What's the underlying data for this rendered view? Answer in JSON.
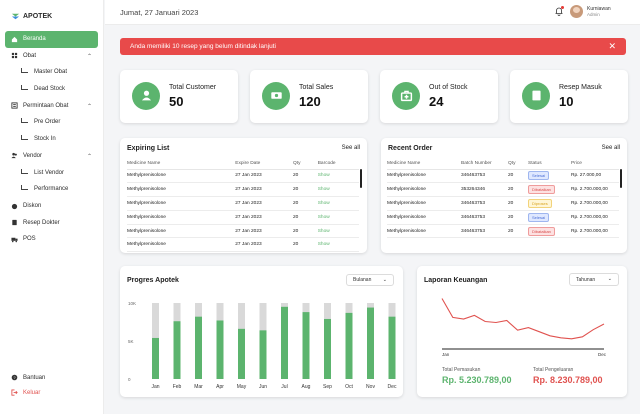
{
  "app": {
    "name": "APOTEK"
  },
  "sidebar": {
    "items": [
      {
        "label": "Beranda",
        "icon": "home-icon",
        "active": true
      },
      {
        "label": "Obat",
        "icon": "grid-icon",
        "expandable": true
      },
      {
        "label": "Master Obat",
        "sub": true
      },
      {
        "label": "Dead Stock",
        "sub": true
      },
      {
        "label": "Permintaan Obat",
        "icon": "list-icon",
        "expandable": true
      },
      {
        "label": "Pre Order",
        "sub": true
      },
      {
        "label": "Stock In",
        "sub": true
      },
      {
        "label": "Vendor",
        "icon": "people-icon",
        "expandable": true
      },
      {
        "label": "List Vendor",
        "sub": true
      },
      {
        "label": "Performance",
        "sub": true
      },
      {
        "label": "Diskon",
        "icon": "discount-icon"
      },
      {
        "label": "Resep Dokter",
        "icon": "prescription-icon"
      },
      {
        "label": "POS",
        "icon": "truck-icon"
      }
    ],
    "bottom": [
      {
        "label": "Bantuan",
        "icon": "help-icon"
      },
      {
        "label": "Keluar",
        "icon": "logout-icon"
      }
    ]
  },
  "header": {
    "date": "Jumat, 27 Januari 2023",
    "user_name": "Kurniawan",
    "user_role": "Admin"
  },
  "alert": {
    "message": "Anda memiliki 10 resep yang belum ditindak lanjuti"
  },
  "stats": [
    {
      "label": "Total Customer",
      "value": "50",
      "icon": "person-icon"
    },
    {
      "label": "Total Sales",
      "value": "120",
      "icon": "money-icon"
    },
    {
      "label": "Out of Stock",
      "value": "24",
      "icon": "medkit-icon"
    },
    {
      "label": "Resep Masuk",
      "value": "10",
      "icon": "prescription-icon"
    }
  ],
  "expiring": {
    "title": "Expiring List",
    "see_all": "See all",
    "columns": [
      "Medicine Name",
      "Expire Date",
      "Qty",
      "Barcode"
    ],
    "rows": [
      [
        "Methylprenisolone",
        "27 Jan 2023",
        "20",
        "Show"
      ],
      [
        "Methylprenisolone",
        "27 Jan 2023",
        "20",
        "Show"
      ],
      [
        "Methylprenisolone",
        "27 Jan 2023",
        "20",
        "Show"
      ],
      [
        "Methylprenisolone",
        "27 Jan 2023",
        "20",
        "Show"
      ],
      [
        "Methylprenisolone",
        "27 Jan 2023",
        "20",
        "Show"
      ],
      [
        "Methylprenisolone",
        "27 Jan 2023",
        "20",
        "Show"
      ]
    ]
  },
  "recent": {
    "title": "Recent Order",
    "see_all": "See all",
    "columns": [
      "Medicine Name",
      "Batch Number",
      "Qty",
      "Status",
      "Price"
    ],
    "rows": [
      [
        "Methylprenisolone",
        "346463753",
        "20",
        "Selesai",
        "Rp. 27.000,00",
        "blue"
      ],
      [
        "Methylprenisolone",
        "353264346",
        "20",
        "Dibatalkan",
        "Rp. 2.700.000,00",
        "red"
      ],
      [
        "Methylprenisolone",
        "346463753",
        "20",
        "Diproses",
        "Rp. 2.700.000,00",
        "yellow"
      ],
      [
        "Methylprenisolone",
        "346463753",
        "20",
        "Selesai",
        "Rp. 2.700.000,00",
        "blue"
      ],
      [
        "Methylprenisolone",
        "346463753",
        "20",
        "Dibatalkan",
        "Rp. 2.700.000,00",
        "red"
      ]
    ]
  },
  "progress_card": {
    "title": "Progres Apotek",
    "filter": "Bulanan"
  },
  "finance_card": {
    "title": "Laporan Keuangan",
    "filter": "Tahunan",
    "income_label": "Total Pemasukan",
    "income_value": "Rp. 5.230.789,00",
    "expense_label": "Total Pengeluaran",
    "expense_value": "Rp. 8.230.789,00"
  },
  "colors": {
    "accent": "#5cb46e",
    "danger": "#e84a4a",
    "bar_bg": "#d9d9d9",
    "line": "#e0524f"
  },
  "chart_data": [
    {
      "type": "bar",
      "title": "Progres Apotek",
      "categories": [
        "Jan",
        "Feb",
        "Mar",
        "Apr",
        "May",
        "Jun",
        "Jul",
        "Aug",
        "Sep",
        "Oct",
        "Nov",
        "Dec"
      ],
      "series": [
        {
          "values": [
            54,
            76,
            82,
            77,
            66,
            64,
            95,
            88,
            79,
            87,
            94,
            82
          ]
        },
        {
          "values": [
            100,
            100,
            100,
            100,
            100,
            100,
            100,
            100,
            100,
            100,
            100,
            100
          ]
        }
      ],
      "ytick_labels": [
        "10K",
        "5K",
        "0"
      ],
      "ylim": [
        0,
        100
      ]
    },
    {
      "type": "line",
      "title": "Laporan Keuangan",
      "x_tick_labels": [
        "Jan",
        "Dec"
      ],
      "series": [
        {
          "values": [
            95,
            58,
            55,
            62,
            50,
            48,
            52,
            33,
            38,
            30,
            22,
            18,
            16,
            20,
            34,
            45
          ]
        }
      ],
      "ylim": [
        0,
        100
      ]
    }
  ]
}
